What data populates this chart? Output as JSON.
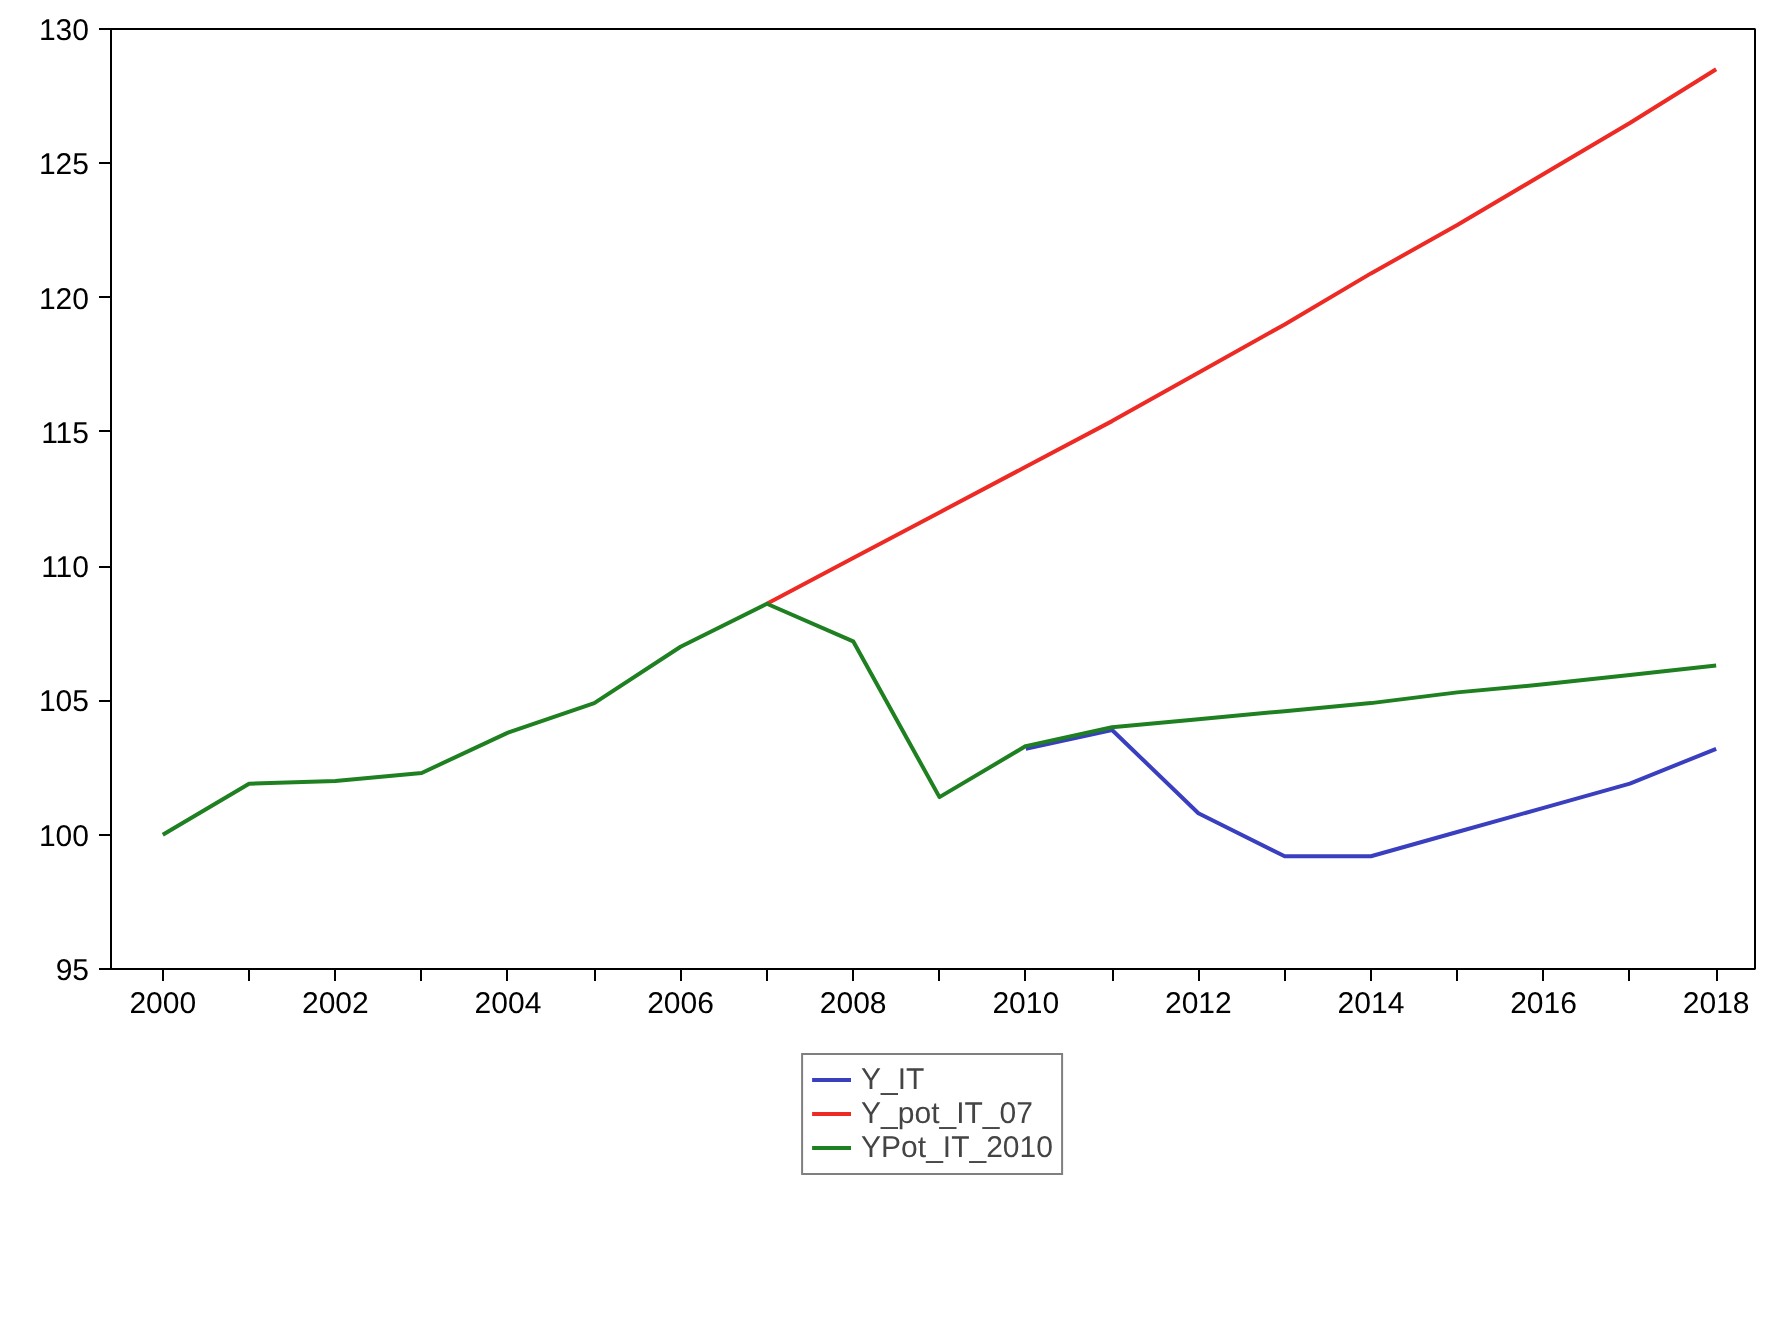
{
  "chart_data": {
    "type": "line",
    "x": [
      2000,
      2001,
      2002,
      2003,
      2004,
      2005,
      2006,
      2007,
      2008,
      2009,
      2010,
      2011,
      2012,
      2013,
      2014,
      2015,
      2016,
      2017,
      2018
    ],
    "series": [
      {
        "name": "Y_IT",
        "color": "#3a3fbf",
        "values": [
          null,
          null,
          null,
          null,
          null,
          null,
          null,
          null,
          null,
          null,
          103.2,
          103.9,
          100.8,
          99.2,
          99.2,
          100.1,
          101.0,
          101.9,
          103.2
        ]
      },
      {
        "name": "Y_pot_IT_07",
        "color": "#ee2a24",
        "values": [
          null,
          null,
          null,
          null,
          null,
          null,
          null,
          108.6,
          110.3,
          112.0,
          113.7,
          115.4,
          117.2,
          119.0,
          120.9,
          122.7,
          124.6,
          126.5,
          128.5
        ]
      },
      {
        "name": "YPot_IT_2010",
        "color": "#1e8020",
        "values": [
          100.0,
          101.9,
          102.0,
          102.3,
          103.8,
          104.9,
          107.0,
          108.6,
          107.2,
          101.4,
          103.3,
          104.0,
          104.3,
          104.6,
          104.9,
          105.3,
          105.6,
          105.95,
          106.3
        ]
      }
    ],
    "xlim": [
      1999.4,
      2018.45
    ],
    "ylim": [
      95,
      130
    ],
    "xticks": [
      2000,
      {
        "value": 2001,
        "label": null
      },
      2002,
      {
        "value": 2003,
        "label": null
      },
      2004,
      {
        "value": 2005,
        "label": null
      },
      2006,
      {
        "value": 2007,
        "label": null
      },
      2008,
      {
        "value": 2009,
        "label": null
      },
      2010,
      {
        "value": 2011,
        "label": null
      },
      2012,
      {
        "value": 2013,
        "label": null
      },
      2014,
      {
        "value": 2015,
        "label": null
      },
      2016,
      {
        "value": 2017,
        "label": null
      },
      2018
    ],
    "yticks": [
      95,
      100,
      105,
      110,
      115,
      120,
      125,
      130
    ],
    "grid": false,
    "legend": "bottom",
    "marker": "none",
    "line_style": "solid"
  }
}
